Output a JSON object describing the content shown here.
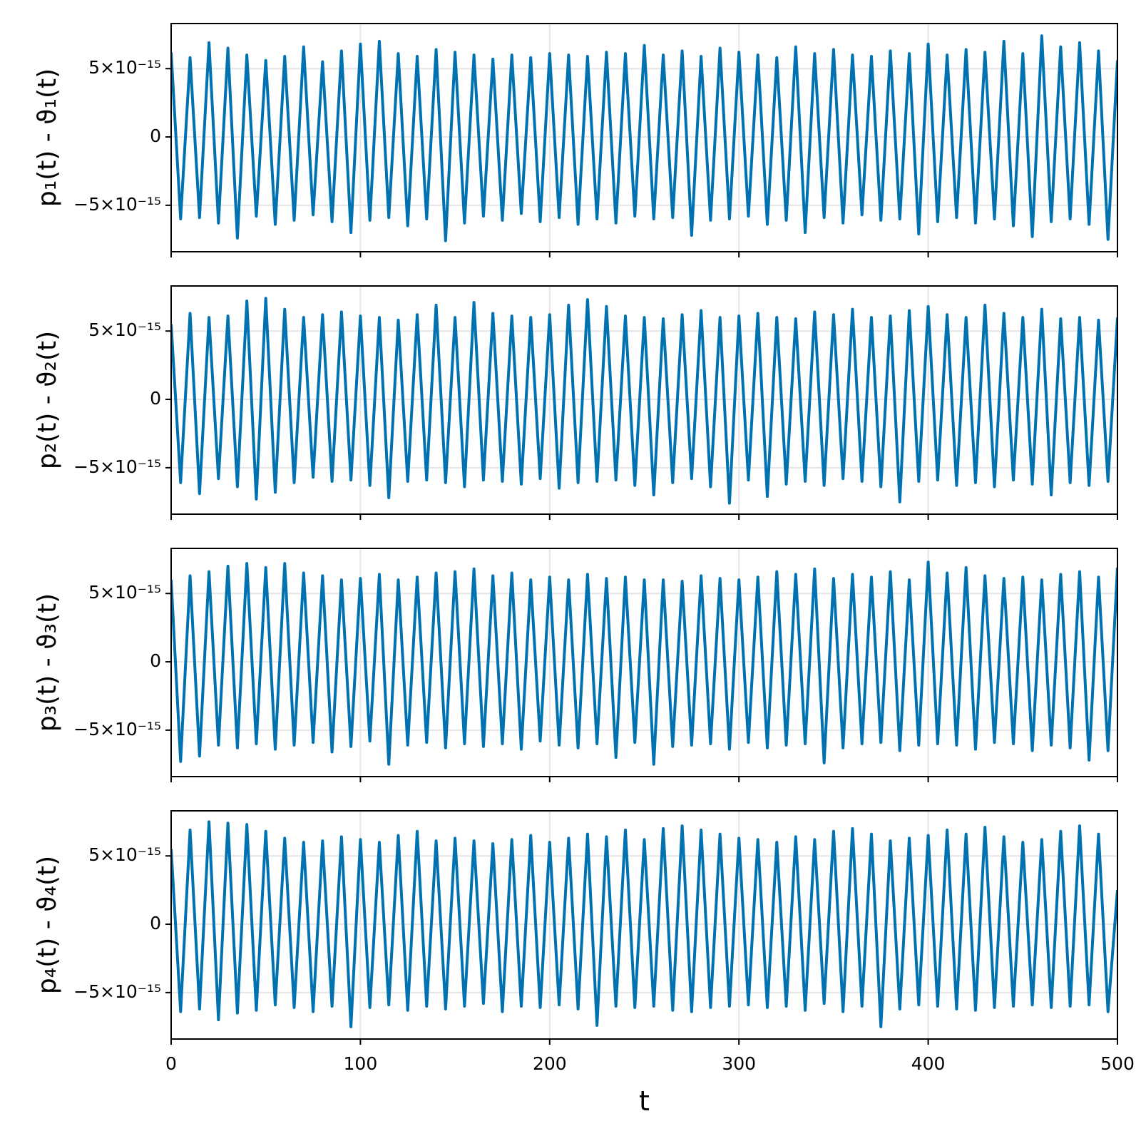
{
  "chart_data": [
    {
      "type": "line",
      "ylabel": "p₁(t) - ϑ₁(t)",
      "xlim": [
        0,
        500
      ],
      "xticks": [
        0,
        100,
        200,
        300,
        400,
        500
      ],
      "xtick_labels": false,
      "ylim": [
        -8.4e-15,
        8.3e-15
      ],
      "yticks": [
        {
          "value": -5e-15,
          "label": "−5×10⁻¹⁵"
        },
        0,
        {
          "value": 5e-15,
          "label": "5×10⁻¹⁵"
        }
      ],
      "grid": true,
      "x": [
        0,
        5,
        10,
        15,
        20,
        25,
        30,
        35,
        40,
        45,
        50,
        55,
        60,
        65,
        70,
        75,
        80,
        85,
        90,
        95,
        100,
        105,
        110,
        115,
        120,
        125,
        130,
        135,
        140,
        145,
        150,
        155,
        160,
        165,
        170,
        175,
        180,
        185,
        190,
        195,
        200,
        205,
        210,
        215,
        220,
        225,
        230,
        235,
        240,
        245,
        250,
        255,
        260,
        265,
        270,
        275,
        280,
        285,
        290,
        295,
        300,
        305,
        310,
        315,
        320,
        325,
        330,
        335,
        340,
        345,
        350,
        355,
        360,
        365,
        370,
        375,
        380,
        385,
        390,
        395,
        400,
        405,
        410,
        415,
        420,
        425,
        430,
        435,
        440,
        445,
        450,
        455,
        460,
        465,
        470,
        475,
        480,
        485,
        490,
        495,
        500
      ],
      "series": [
        {
          "color": "#0072b2",
          "values": [
            6.2e-15,
            -6e-15,
            5.8e-15,
            -5.9e-15,
            6.9e-15,
            -6.3e-15,
            6.5e-15,
            -7.4e-15,
            6e-15,
            -5.8e-15,
            5.6e-15,
            -6.4e-15,
            5.9e-15,
            -6.1e-15,
            6.6e-15,
            -5.7e-15,
            5.5e-15,
            -6.2e-15,
            6.3e-15,
            -7e-15,
            6.8e-15,
            -6.1e-15,
            7e-15,
            -5.9e-15,
            6.1e-15,
            -6.5e-15,
            5.9e-15,
            -6e-15,
            6.4e-15,
            -7.6e-15,
            6.2e-15,
            -6.3e-15,
            6e-15,
            -5.8e-15,
            5.7e-15,
            -6.1e-15,
            6e-15,
            -5.6e-15,
            5.8e-15,
            -6.2e-15,
            6.1e-15,
            -5.9e-15,
            6e-15,
            -6.4e-15,
            5.9e-15,
            -6e-15,
            6.2e-15,
            -6.3e-15,
            6.1e-15,
            -5.8e-15,
            6.7e-15,
            -6e-15,
            6e-15,
            -5.9e-15,
            6.3e-15,
            -7.2e-15,
            5.9e-15,
            -6.1e-15,
            6.5e-15,
            -6e-15,
            6.2e-15,
            -5.8e-15,
            6e-15,
            -6.4e-15,
            5.8e-15,
            -6.1e-15,
            6.6e-15,
            -7e-15,
            6.1e-15,
            -5.9e-15,
            6.4e-15,
            -6.3e-15,
            6e-15,
            -5.7e-15,
            5.9e-15,
            -6.1e-15,
            6.3e-15,
            -6e-15,
            6.1e-15,
            -7.1e-15,
            6.8e-15,
            -6.2e-15,
            6e-15,
            -5.9e-15,
            6.4e-15,
            -6.3e-15,
            6.2e-15,
            -6e-15,
            7e-15,
            -6.5e-15,
            6.1e-15,
            -7.3e-15,
            7.4e-15,
            -6.2e-15,
            6.6e-15,
            -6e-15,
            6.9e-15,
            -6.4e-15,
            6.3e-15,
            -7.5e-15,
            5.6e-15
          ]
        }
      ]
    },
    {
      "type": "line",
      "ylabel": "p₂(t) - ϑ₂(t)",
      "xlim": [
        0,
        500
      ],
      "xticks": [
        0,
        100,
        200,
        300,
        400,
        500
      ],
      "xtick_labels": false,
      "ylim": [
        -8.4e-15,
        8.3e-15
      ],
      "yticks": [
        {
          "value": -5e-15,
          "label": "−5×10⁻¹⁵"
        },
        0,
        {
          "value": 5e-15,
          "label": "5×10⁻¹⁵"
        }
      ],
      "grid": true,
      "x": [
        0,
        5,
        10,
        15,
        20,
        25,
        30,
        35,
        40,
        45,
        50,
        55,
        60,
        65,
        70,
        75,
        80,
        85,
        90,
        95,
        100,
        105,
        110,
        115,
        120,
        125,
        130,
        135,
        140,
        145,
        150,
        155,
        160,
        165,
        170,
        175,
        180,
        185,
        190,
        195,
        200,
        205,
        210,
        215,
        220,
        225,
        230,
        235,
        240,
        245,
        250,
        255,
        260,
        265,
        270,
        275,
        280,
        285,
        290,
        295,
        300,
        305,
        310,
        315,
        320,
        325,
        330,
        335,
        340,
        345,
        350,
        355,
        360,
        365,
        370,
        375,
        380,
        385,
        390,
        395,
        400,
        405,
        410,
        415,
        420,
        425,
        430,
        435,
        440,
        445,
        450,
        455,
        460,
        465,
        470,
        475,
        480,
        485,
        490,
        495,
        500
      ],
      "series": [
        {
          "color": "#0072b2",
          "values": [
            5.5e-15,
            -6.1e-15,
            6.3e-15,
            -6.9e-15,
            6e-15,
            -5.8e-15,
            6.1e-15,
            -6.4e-15,
            7.2e-15,
            -7.3e-15,
            7.4e-15,
            -6.8e-15,
            6.6e-15,
            -6.1e-15,
            6e-15,
            -5.7e-15,
            6.2e-15,
            -6e-15,
            6.4e-15,
            -5.9e-15,
            6.1e-15,
            -6.3e-15,
            6e-15,
            -7.2e-15,
            5.8e-15,
            -6e-15,
            6.2e-15,
            -5.9e-15,
            6.9e-15,
            -6.1e-15,
            6e-15,
            -6.4e-15,
            7.1e-15,
            -5.9e-15,
            6.3e-15,
            -6e-15,
            6.1e-15,
            -6.2e-15,
            6e-15,
            -5.8e-15,
            6.2e-15,
            -6.5e-15,
            6.9e-15,
            -6.1e-15,
            7.3e-15,
            -6e-15,
            6.8e-15,
            -5.9e-15,
            6.1e-15,
            -6.3e-15,
            6e-15,
            -7e-15,
            5.9e-15,
            -6.1e-15,
            6.2e-15,
            -5.8e-15,
            6.5e-15,
            -6.4e-15,
            6e-15,
            -7.6e-15,
            6.1e-15,
            -5.9e-15,
            6.3e-15,
            -7.1e-15,
            6e-15,
            -6.2e-15,
            5.9e-15,
            -6e-15,
            6.4e-15,
            -6.3e-15,
            6.2e-15,
            -5.8e-15,
            6.6e-15,
            -6e-15,
            6e-15,
            -6.4e-15,
            6.1e-15,
            -7.5e-15,
            6.5e-15,
            -6e-15,
            6.8e-15,
            -5.9e-15,
            6.2e-15,
            -6.3e-15,
            6e-15,
            -6.1e-15,
            6.9e-15,
            -6.4e-15,
            6.3e-15,
            -5.9e-15,
            6e-15,
            -6.2e-15,
            6.6e-15,
            -7e-15,
            5.9e-15,
            -6.1e-15,
            6e-15,
            -6.3e-15,
            5.8e-15,
            -6e-15,
            6e-15
          ]
        }
      ]
    },
    {
      "type": "line",
      "ylabel": "p₃(t) - ϑ₃(t)",
      "xlim": [
        0,
        500
      ],
      "xticks": [
        0,
        100,
        200,
        300,
        400,
        500
      ],
      "xtick_labels": false,
      "ylim": [
        -8.4e-15,
        8.3e-15
      ],
      "yticks": [
        {
          "value": -5e-15,
          "label": "−5×10⁻¹⁵"
        },
        0,
        {
          "value": 5e-15,
          "label": "5×10⁻¹⁵"
        }
      ],
      "grid": true,
      "x": [
        0,
        5,
        10,
        15,
        20,
        25,
        30,
        35,
        40,
        45,
        50,
        55,
        60,
        65,
        70,
        75,
        80,
        85,
        90,
        95,
        100,
        105,
        110,
        115,
        120,
        125,
        130,
        135,
        140,
        145,
        150,
        155,
        160,
        165,
        170,
        175,
        180,
        185,
        190,
        195,
        200,
        205,
        210,
        215,
        220,
        225,
        230,
        235,
        240,
        245,
        250,
        255,
        260,
        265,
        270,
        275,
        280,
        285,
        290,
        295,
        300,
        305,
        310,
        315,
        320,
        325,
        330,
        335,
        340,
        345,
        350,
        355,
        360,
        365,
        370,
        375,
        380,
        385,
        390,
        395,
        400,
        405,
        410,
        415,
        420,
        425,
        430,
        435,
        440,
        445,
        450,
        455,
        460,
        465,
        470,
        475,
        480,
        485,
        490,
        495,
        500
      ],
      "series": [
        {
          "color": "#0072b2",
          "values": [
            6e-15,
            -7.3e-15,
            6.3e-15,
            -6.9e-15,
            6.6e-15,
            -6.1e-15,
            7e-15,
            -6.3e-15,
            7.2e-15,
            -6e-15,
            6.9e-15,
            -6.4e-15,
            7.2e-15,
            -6.1e-15,
            6.5e-15,
            -5.9e-15,
            6.3e-15,
            -6.6e-15,
            6e-15,
            -6.2e-15,
            6.1e-15,
            -5.8e-15,
            6.4e-15,
            -7.5e-15,
            6e-15,
            -6.1e-15,
            6.2e-15,
            -5.9e-15,
            6.5e-15,
            -6.3e-15,
            6.6e-15,
            -6e-15,
            6.8e-15,
            -6.2e-15,
            6.3e-15,
            -6e-15,
            6.5e-15,
            -6.4e-15,
            6e-15,
            -5.8e-15,
            6.2e-15,
            -6.1e-15,
            6e-15,
            -6.3e-15,
            6.4e-15,
            -6e-15,
            6.1e-15,
            -7e-15,
            6.2e-15,
            -5.9e-15,
            6e-15,
            -7.5e-15,
            6e-15,
            -6.2e-15,
            5.9e-15,
            -6.1e-15,
            6.3e-15,
            -6e-15,
            6.1e-15,
            -6.4e-15,
            6e-15,
            -5.9e-15,
            6.2e-15,
            -6.3e-15,
            6.6e-15,
            -6.1e-15,
            6.4e-15,
            -6e-15,
            6.8e-15,
            -7.4e-15,
            6.1e-15,
            -6.3e-15,
            6.4e-15,
            -6e-15,
            6.2e-15,
            -5.9e-15,
            6.6e-15,
            -6.5e-15,
            6e-15,
            -6.1e-15,
            7.3e-15,
            -6e-15,
            6.5e-15,
            -6.1e-15,
            6.9e-15,
            -6.4e-15,
            6.3e-15,
            -5.9e-15,
            6.1e-15,
            -6e-15,
            6.2e-15,
            -6.5e-15,
            6e-15,
            -6.1e-15,
            6.4e-15,
            -6.3e-15,
            6.6e-15,
            -7.2e-15,
            6.2e-15,
            -6.5e-15,
            6.9e-15
          ]
        }
      ]
    },
    {
      "type": "line",
      "ylabel": "p₄(t) - ϑ₄(t)",
      "xlabel": "t",
      "xlim": [
        0,
        500
      ],
      "xticks": [
        0,
        100,
        200,
        300,
        400,
        500
      ],
      "xtick_labels": true,
      "ylim": [
        -8.4e-15,
        8.3e-15
      ],
      "yticks": [
        {
          "value": -5e-15,
          "label": "−5×10⁻¹⁵"
        },
        0,
        {
          "value": 5e-15,
          "label": "5×10⁻¹⁵"
        }
      ],
      "grid": true,
      "x": [
        0,
        5,
        10,
        15,
        20,
        25,
        30,
        35,
        40,
        45,
        50,
        55,
        60,
        65,
        70,
        75,
        80,
        85,
        90,
        95,
        100,
        105,
        110,
        115,
        120,
        125,
        130,
        135,
        140,
        145,
        150,
        155,
        160,
        165,
        170,
        175,
        180,
        185,
        190,
        195,
        200,
        205,
        210,
        215,
        220,
        225,
        230,
        235,
        240,
        245,
        250,
        255,
        260,
        265,
        270,
        275,
        280,
        285,
        290,
        295,
        300,
        305,
        310,
        315,
        320,
        325,
        330,
        335,
        340,
        345,
        350,
        355,
        360,
        365,
        370,
        375,
        380,
        385,
        390,
        395,
        400,
        405,
        410,
        415,
        420,
        425,
        430,
        435,
        440,
        445,
        450,
        455,
        460,
        465,
        470,
        475,
        480,
        485,
        490,
        495,
        500
      ],
      "series": [
        {
          "color": "#0072b2",
          "values": [
            5.5e-15,
            -6.4e-15,
            6.9e-15,
            -6.2e-15,
            7.5e-15,
            -7e-15,
            7.4e-15,
            -6.5e-15,
            7.3e-15,
            -6.3e-15,
            6.8e-15,
            -5.9e-15,
            6.3e-15,
            -6.1e-15,
            6e-15,
            -6.4e-15,
            6.1e-15,
            -6e-15,
            6.4e-15,
            -7.5e-15,
            6.2e-15,
            -6.1e-15,
            6e-15,
            -5.9e-15,
            6.5e-15,
            -6.3e-15,
            6.8e-15,
            -6e-15,
            6.1e-15,
            -6.2e-15,
            6.3e-15,
            -6e-15,
            6.1e-15,
            -5.8e-15,
            5.9e-15,
            -6.4e-15,
            6.2e-15,
            -6e-15,
            6.5e-15,
            -6.1e-15,
            6e-15,
            -5.9e-15,
            6.3e-15,
            -6.2e-15,
            6.6e-15,
            -7.4e-15,
            6.4e-15,
            -6e-15,
            6.9e-15,
            -6.1e-15,
            6.2e-15,
            -6e-15,
            7e-15,
            -6.3e-15,
            7.2e-15,
            -6.4e-15,
            6.9e-15,
            -6.1e-15,
            6.6e-15,
            -6e-15,
            6.3e-15,
            -5.9e-15,
            6.2e-15,
            -6.1e-15,
            6e-15,
            -6e-15,
            6.4e-15,
            -6.3e-15,
            6.2e-15,
            -5.8e-15,
            6.8e-15,
            -6.4e-15,
            7e-15,
            -6e-15,
            6.6e-15,
            -7.5e-15,
            6.1e-15,
            -6.2e-15,
            6.3e-15,
            -5.9e-15,
            6.5e-15,
            -6e-15,
            6.9e-15,
            -6.2e-15,
            6.6e-15,
            -6.3e-15,
            7.1e-15,
            -6.1e-15,
            6.4e-15,
            -6e-15,
            6e-15,
            -5.9e-15,
            6.2e-15,
            -6.1e-15,
            6.8e-15,
            -6e-15,
            7.2e-15,
            -5.9e-15,
            6.6e-15,
            -6.4e-15,
            2.5e-15
          ]
        }
      ]
    }
  ]
}
